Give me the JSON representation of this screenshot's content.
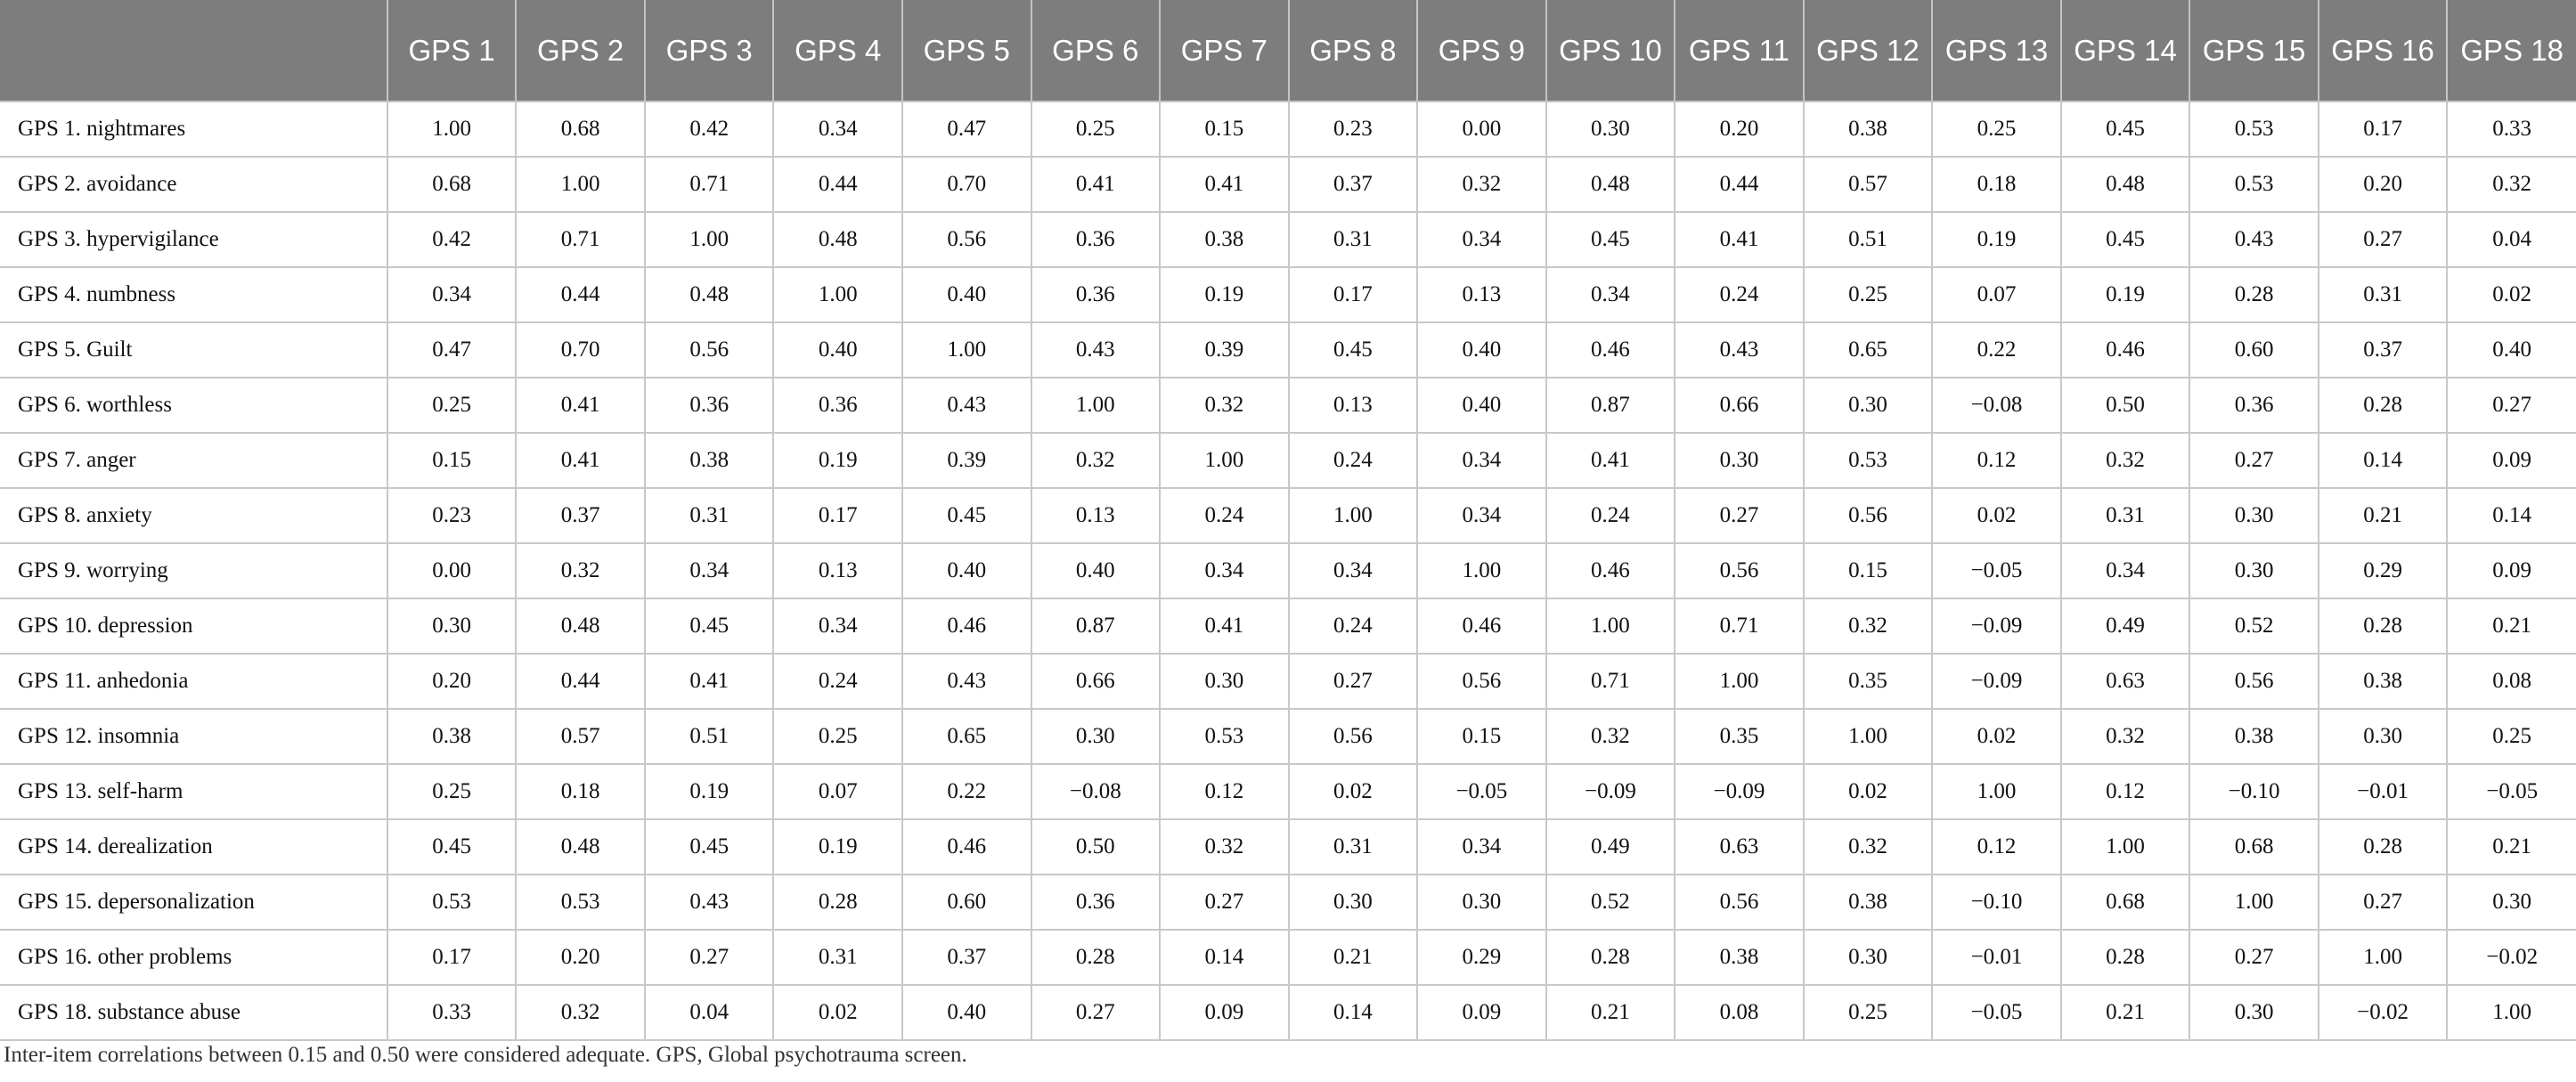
{
  "table": {
    "corner_label": "",
    "columns": [
      "GPS 1",
      "GPS 2",
      "GPS 3",
      "GPS 4",
      "GPS 5",
      "GPS 6",
      "GPS 7",
      "GPS 8",
      "GPS 9",
      "GPS 10",
      "GPS 11",
      "GPS 12",
      "GPS 13",
      "GPS 14",
      "GPS 15",
      "GPS 16",
      "GPS 18"
    ],
    "rows": [
      {
        "label": "GPS 1. nightmares",
        "values": [
          "1.00",
          "0.68",
          "0.42",
          "0.34",
          "0.47",
          "0.25",
          "0.15",
          "0.23",
          "0.00",
          "0.30",
          "0.20",
          "0.38",
          "0.25",
          "0.45",
          "0.53",
          "0.17",
          "0.33"
        ]
      },
      {
        "label": "GPS 2. avoidance",
        "values": [
          "0.68",
          "1.00",
          "0.71",
          "0.44",
          "0.70",
          "0.41",
          "0.41",
          "0.37",
          "0.32",
          "0.48",
          "0.44",
          "0.57",
          "0.18",
          "0.48",
          "0.53",
          "0.20",
          "0.32"
        ]
      },
      {
        "label": "GPS 3. hypervigilance",
        "values": [
          "0.42",
          "0.71",
          "1.00",
          "0.48",
          "0.56",
          "0.36",
          "0.38",
          "0.31",
          "0.34",
          "0.45",
          "0.41",
          "0.51",
          "0.19",
          "0.45",
          "0.43",
          "0.27",
          "0.04"
        ]
      },
      {
        "label": "GPS 4. numbness",
        "values": [
          "0.34",
          "0.44",
          "0.48",
          "1.00",
          "0.40",
          "0.36",
          "0.19",
          "0.17",
          "0.13",
          "0.34",
          "0.24",
          "0.25",
          "0.07",
          "0.19",
          "0.28",
          "0.31",
          "0.02"
        ]
      },
      {
        "label": "GPS 5. Guilt",
        "values": [
          "0.47",
          "0.70",
          "0.56",
          "0.40",
          "1.00",
          "0.43",
          "0.39",
          "0.45",
          "0.40",
          "0.46",
          "0.43",
          "0.65",
          "0.22",
          "0.46",
          "0.60",
          "0.37",
          "0.40"
        ]
      },
      {
        "label": "GPS 6. worthless",
        "values": [
          "0.25",
          "0.41",
          "0.36",
          "0.36",
          "0.43",
          "1.00",
          "0.32",
          "0.13",
          "0.40",
          "0.87",
          "0.66",
          "0.30",
          "−0.08",
          "0.50",
          "0.36",
          "0.28",
          "0.27"
        ]
      },
      {
        "label": "GPS 7. anger",
        "values": [
          "0.15",
          "0.41",
          "0.38",
          "0.19",
          "0.39",
          "0.32",
          "1.00",
          "0.24",
          "0.34",
          "0.41",
          "0.30",
          "0.53",
          "0.12",
          "0.32",
          "0.27",
          "0.14",
          "0.09"
        ]
      },
      {
        "label": "GPS 8. anxiety",
        "values": [
          "0.23",
          "0.37",
          "0.31",
          "0.17",
          "0.45",
          "0.13",
          "0.24",
          "1.00",
          "0.34",
          "0.24",
          "0.27",
          "0.56",
          "0.02",
          "0.31",
          "0.30",
          "0.21",
          "0.14"
        ]
      },
      {
        "label": "GPS 9. worrying",
        "values": [
          "0.00",
          "0.32",
          "0.34",
          "0.13",
          "0.40",
          "0.40",
          "0.34",
          "0.34",
          "1.00",
          "0.46",
          "0.56",
          "0.15",
          "−0.05",
          "0.34",
          "0.30",
          "0.29",
          "0.09"
        ]
      },
      {
        "label": "GPS 10. depression",
        "values": [
          "0.30",
          "0.48",
          "0.45",
          "0.34",
          "0.46",
          "0.87",
          "0.41",
          "0.24",
          "0.46",
          "1.00",
          "0.71",
          "0.32",
          "−0.09",
          "0.49",
          "0.52",
          "0.28",
          "0.21"
        ]
      },
      {
        "label": "GPS 11. anhedonia",
        "values": [
          "0.20",
          "0.44",
          "0.41",
          "0.24",
          "0.43",
          "0.66",
          "0.30",
          "0.27",
          "0.56",
          "0.71",
          "1.00",
          "0.35",
          "−0.09",
          "0.63",
          "0.56",
          "0.38",
          "0.08"
        ]
      },
      {
        "label": "GPS 12. insomnia",
        "values": [
          "0.38",
          "0.57",
          "0.51",
          "0.25",
          "0.65",
          "0.30",
          "0.53",
          "0.56",
          "0.15",
          "0.32",
          "0.35",
          "1.00",
          "0.02",
          "0.32",
          "0.38",
          "0.30",
          "0.25"
        ]
      },
      {
        "label": "GPS 13. self-harm",
        "values": [
          "0.25",
          "0.18",
          "0.19",
          "0.07",
          "0.22",
          "−0.08",
          "0.12",
          "0.02",
          "−0.05",
          "−0.09",
          "−0.09",
          "0.02",
          "1.00",
          "0.12",
          "−0.10",
          "−0.01",
          "−0.05"
        ]
      },
      {
        "label": "GPS 14. derealization",
        "values": [
          "0.45",
          "0.48",
          "0.45",
          "0.19",
          "0.46",
          "0.50",
          "0.32",
          "0.31",
          "0.34",
          "0.49",
          "0.63",
          "0.32",
          "0.12",
          "1.00",
          "0.68",
          "0.28",
          "0.21"
        ]
      },
      {
        "label": "GPS 15. depersonalization",
        "values": [
          "0.53",
          "0.53",
          "0.43",
          "0.28",
          "0.60",
          "0.36",
          "0.27",
          "0.30",
          "0.30",
          "0.52",
          "0.56",
          "0.38",
          "−0.10",
          "0.68",
          "1.00",
          "0.27",
          "0.30"
        ]
      },
      {
        "label": "GPS 16. other problems",
        "values": [
          "0.17",
          "0.20",
          "0.27",
          "0.31",
          "0.37",
          "0.28",
          "0.14",
          "0.21",
          "0.29",
          "0.28",
          "0.38",
          "0.30",
          "−0.01",
          "0.28",
          "0.27",
          "1.00",
          "−0.02"
        ]
      },
      {
        "label": "GPS 18. substance abuse",
        "values": [
          "0.33",
          "0.32",
          "0.04",
          "0.02",
          "0.40",
          "0.27",
          "0.09",
          "0.14",
          "0.09",
          "0.21",
          "0.08",
          "0.25",
          "−0.05",
          "0.21",
          "0.30",
          "−0.02",
          "1.00"
        ]
      }
    ]
  },
  "footnote": "Inter-item correlations between 0.15 and 0.50 were considered adequate. GPS, Global psychotrauma screen.",
  "colors": {
    "header_background": "#7d7d7d",
    "header_text": "#ffffff",
    "grid_line": "#c8c8c8"
  }
}
